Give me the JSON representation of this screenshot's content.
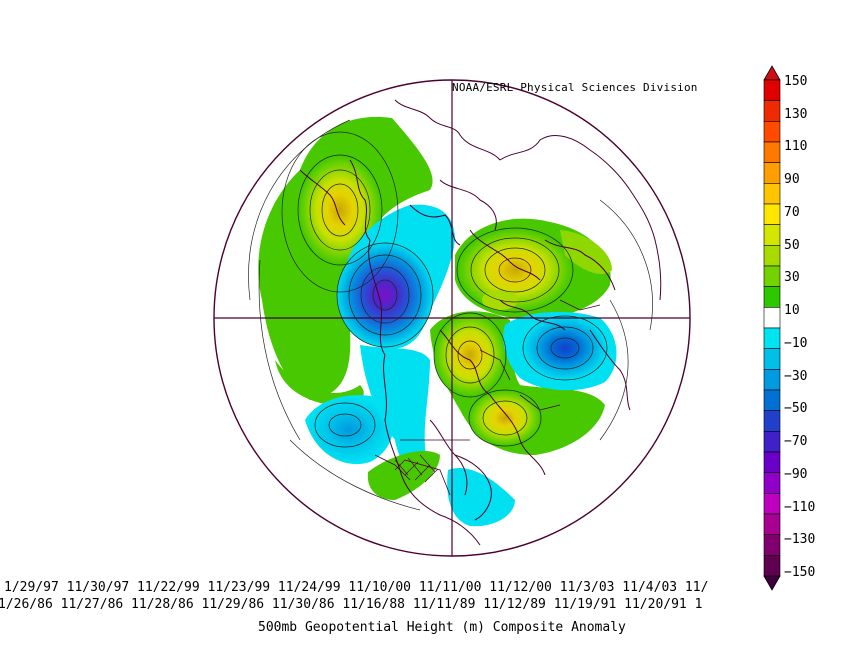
{
  "credit": "NOAA/ESRL Physical Sciences Division",
  "dates_row1": "1/29/97 11/30/97 11/22/99 11/23/99 11/24/99 11/10/00 11/11/00 11/12/00 11/3/03 11/4/03 11/",
  "dates_row2": "1/26/86 11/27/86 11/28/86 11/29/86 11/30/86 11/16/88 11/11/89 11/12/89 11/19/91 11/20/91 1",
  "title": "500mb Geopotential Height (m) Composite Anomaly",
  "colorbar": {
    "levels": [
      150,
      130,
      110,
      90,
      70,
      50,
      30,
      10,
      -10,
      -30,
      -50,
      -70,
      -90,
      -110,
      -130,
      -150
    ],
    "labels": [
      "150",
      "130",
      "110",
      "90",
      "70",
      "50",
      "30",
      "10",
      "−10",
      "−30",
      "−50",
      "−70",
      "−90",
      "−110",
      "−130",
      "−150"
    ],
    "colors": [
      "#e00000",
      "#f02a00",
      "#ff4a00",
      "#ff7800",
      "#ff9e00",
      "#ffc400",
      "#ffe600",
      "#d2e600",
      "#a8dc00",
      "#74d200",
      "#2ec800",
      "#ffffff",
      "#00e4f0",
      "#00bfe8",
      "#009ae0",
      "#0070d2",
      "#2040cc",
      "#4020c8",
      "#6a00c8",
      "#9000c8",
      "#c000c0",
      "#a80090",
      "#800070",
      "#600050"
    ],
    "top_arrow_color": "#d01010",
    "bottom_arrow_color": "#400040"
  },
  "anomalies": [
    {
      "name": "alaska-bering-positive",
      "sign": "positive",
      "peak": 60
    },
    {
      "name": "hudson-bay-negative",
      "sign": "negative",
      "peak": -90
    },
    {
      "name": "siberian-arctic-positive",
      "sign": "positive",
      "peak": 90
    },
    {
      "name": "north-atlantic-positive",
      "sign": "positive",
      "peak": 80
    },
    {
      "name": "scandinavia-positive",
      "sign": "positive",
      "peak": 70
    },
    {
      "name": "eurasian-negative",
      "sign": "negative",
      "peak": -60
    },
    {
      "name": "north-pacific-negative",
      "sign": "negative",
      "peak": -40
    },
    {
      "name": "eastern-us-negative",
      "sign": "negative",
      "peak": -20
    },
    {
      "name": "western-us-positive",
      "sign": "positive",
      "peak": 20
    }
  ]
}
